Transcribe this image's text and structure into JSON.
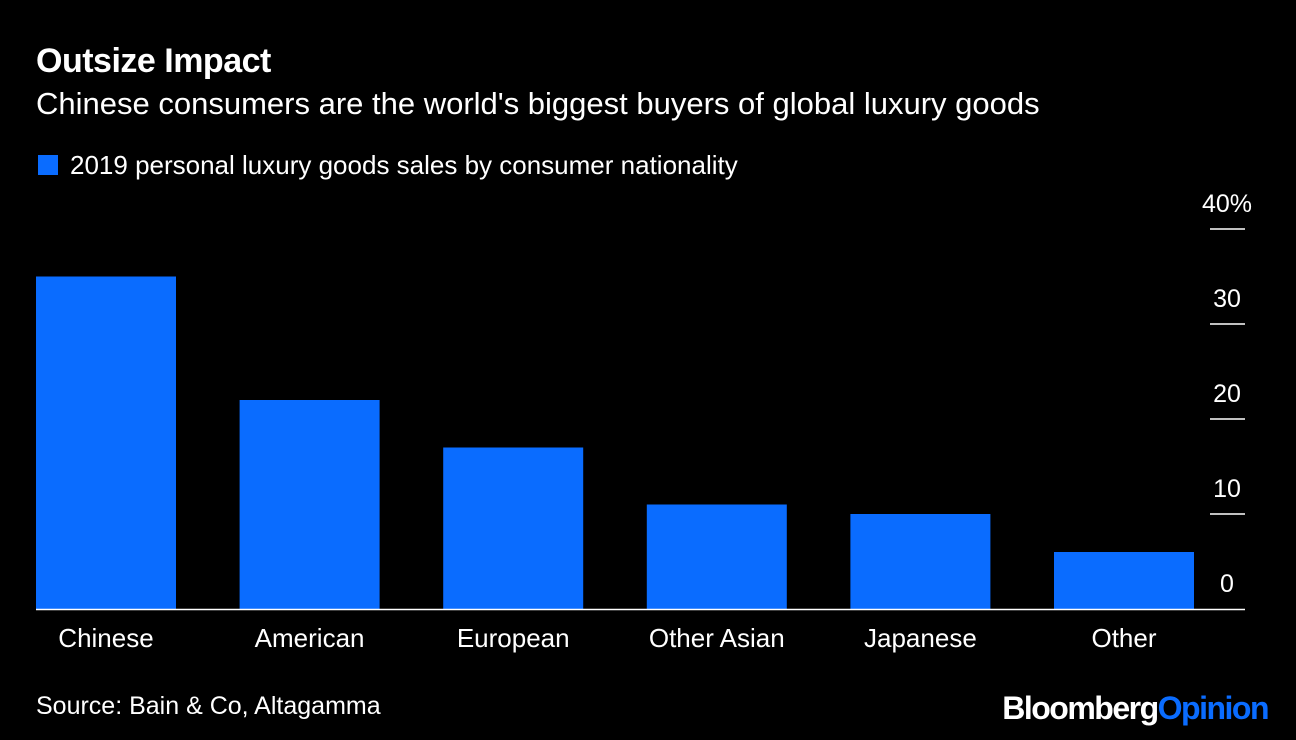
{
  "title": "Outsize Impact",
  "subtitle": "Chinese consumers are the world's biggest buyers of global luxury goods",
  "source": "Source: Bain & Co, Altagamma",
  "brand": {
    "part1": "Bloomberg",
    "part2": "Opinion"
  },
  "colors": {
    "bar": "#0a6cff",
    "background": "#000000",
    "text": "#ffffff",
    "axis": "#ffffff"
  },
  "chart_data": {
    "type": "bar",
    "categories": [
      "Chinese",
      "American",
      "European",
      "Other Asian",
      "Japanese",
      "Other"
    ],
    "series": [
      {
        "name": "2019 personal luxury goods sales by consumer nationality",
        "values": [
          35,
          22,
          17,
          11,
          10,
          6
        ]
      }
    ],
    "ylim": [
      0,
      40
    ],
    "yticks": [
      0,
      10,
      20,
      30,
      40
    ],
    "ytick_labels": [
      "0",
      "10",
      "20",
      "30",
      "40%"
    ],
    "y_axis_position": "right",
    "grid": false,
    "legend_position": "top-left"
  }
}
